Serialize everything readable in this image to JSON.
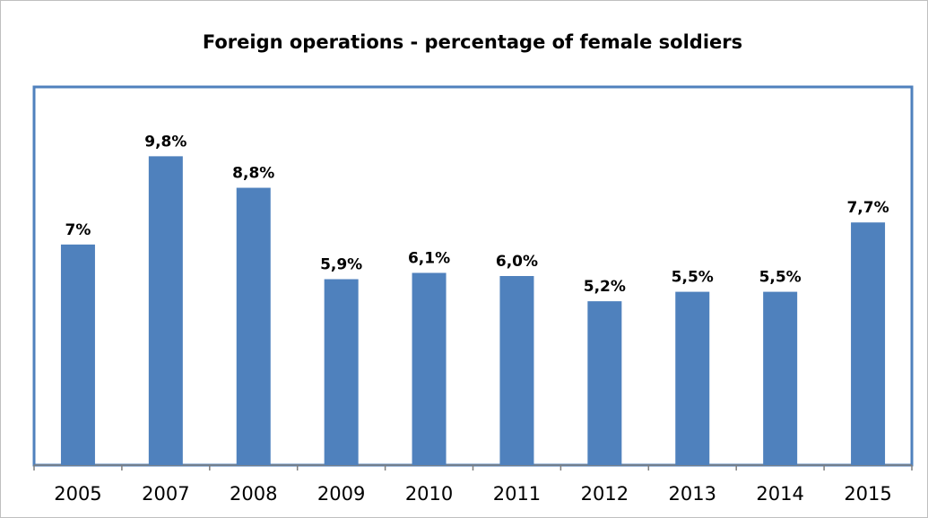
{
  "chart_data": {
    "type": "bar",
    "title": "Foreign operations  - percentage of female soldiers",
    "categories": [
      "2005",
      "2007",
      "2008",
      "2009",
      "2010",
      "2011",
      "2012",
      "2013",
      "2014",
      "2015"
    ],
    "values": [
      7,
      9.8,
      8.8,
      5.9,
      6.1,
      6.0,
      5.2,
      5.5,
      5.5,
      7.7
    ],
    "value_labels": [
      "7%",
      "9,8%",
      "8,8%",
      "5,9%",
      "6,1%",
      "6,0%",
      "5,2%",
      "5,5%",
      "5,5%",
      "7,7%"
    ],
    "color": "#4f81bd",
    "ylim": [
      0,
      12
    ]
  }
}
